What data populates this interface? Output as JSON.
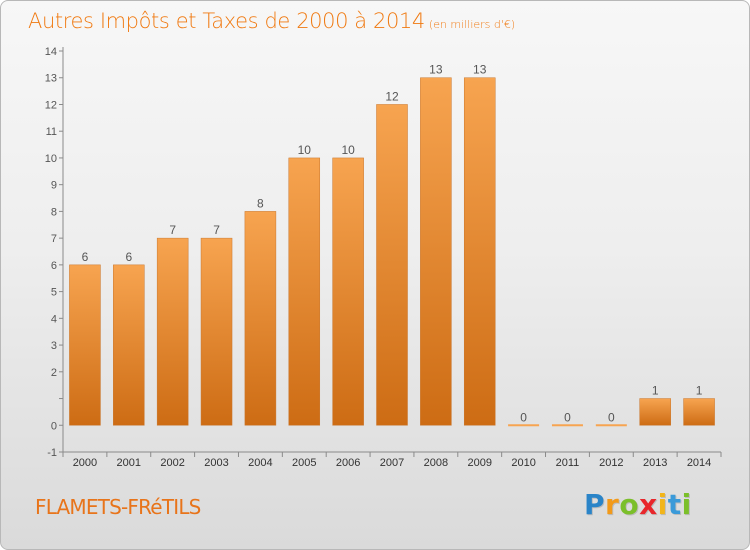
{
  "header": {
    "title": "Autres Impôts et Taxes de 2000 à 2014",
    "subtitle": "(en milliers d'€)"
  },
  "footer": {
    "commune": "FLAMETS-FRéTILS",
    "logo_letters": [
      "P",
      "r",
      "o",
      "x",
      "i",
      "t",
      "i"
    ],
    "logo_colors": [
      "#2a84c8",
      "#f29a1a",
      "#7bbf2a",
      "#e8262b",
      "#f2b51a",
      "#3a9ad9",
      "#7bbf2a"
    ]
  },
  "colors": {
    "bar_light": "#f7a450",
    "bar_dark": "#cd6c14",
    "axis": "#8a8a8a",
    "label": "#555555"
  },
  "chart_data": {
    "type": "bar",
    "title": "Autres Impôts et Taxes de 2000 à 2014",
    "subtitle": "(en milliers d'€)",
    "categories": [
      "2000",
      "2001",
      "2002",
      "2003",
      "2004",
      "2005",
      "2006",
      "2007",
      "2008",
      "2009",
      "2010",
      "2011",
      "2012",
      "2013",
      "2014"
    ],
    "values": [
      6,
      6,
      7,
      7,
      8,
      10,
      10,
      12,
      13,
      13,
      0,
      0,
      0,
      1,
      1
    ],
    "data_labels": [
      "6",
      "6",
      "7",
      "7",
      "8",
      "10",
      "10",
      "12",
      "13",
      "13",
      "0",
      "0",
      "0",
      "1",
      "1"
    ],
    "ylim": [
      -1,
      14
    ],
    "yticks": [
      -1,
      0,
      1,
      2,
      3,
      4,
      5,
      6,
      7,
      8,
      9,
      10,
      11,
      12,
      13,
      14
    ],
    "ytick_labels": [
      "-1",
      "0",
      "",
      "2",
      "3",
      "4",
      "5",
      "6",
      "7",
      "8",
      "9",
      "10",
      "11",
      "12",
      "13",
      "14"
    ],
    "xlabel": "",
    "ylabel": "",
    "grid": false,
    "legend": "none"
  }
}
